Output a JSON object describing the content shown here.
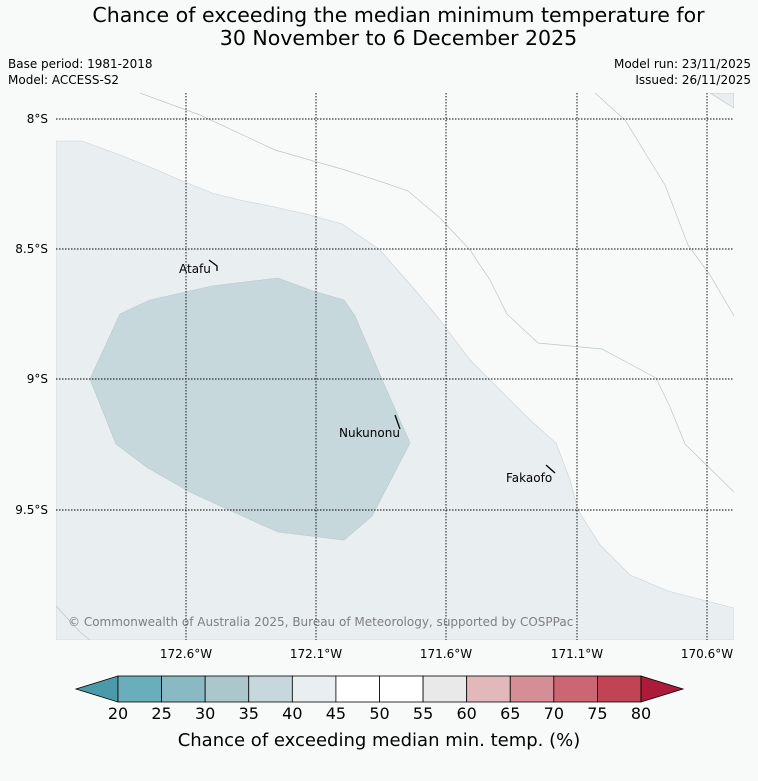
{
  "title": {
    "line1": "Chance of exceeding the median minimum temperature for",
    "line2": "30 November to 6 December 2025"
  },
  "info": {
    "base_period": "Base period: 1981-2018",
    "model": "Model: ACCESS-S2",
    "model_run": "Model run: 23/11/2025",
    "issued": "Issued: 26/11/2025"
  },
  "map": {
    "lat_labels": [
      "8°S",
      "8.5°S",
      "9°S",
      "9.5°S"
    ],
    "lon_labels": [
      "172.6°W",
      "172.1°W",
      "171.6°W",
      "171.1°W",
      "170.6°W"
    ],
    "places": [
      "Atafu",
      "Nukunonu",
      "Fakaofo"
    ],
    "copyright": "© Commonwealth of Australia 2025, Bureau of Meteorology, supported by COSPPac"
  },
  "colorbar": {
    "ticks": [
      "20",
      "25",
      "30",
      "35",
      "40",
      "45",
      "50",
      "55",
      "60",
      "65",
      "70",
      "75",
      "80"
    ],
    "label": "Chance of exceeding median min. temp. (%)",
    "colors": [
      "#6aaebb",
      "#89b9c2",
      "#abc7cc",
      "#c7d8dc",
      "#e9eef0",
      "#ffffff",
      "#ffffff",
      "#e9e9e9",
      "#e2b8bc",
      "#d58e96",
      "#cb6672",
      "#c04453"
    ],
    "under_color": "#4a9aa9",
    "over_color": "#ad1b3a"
  }
}
